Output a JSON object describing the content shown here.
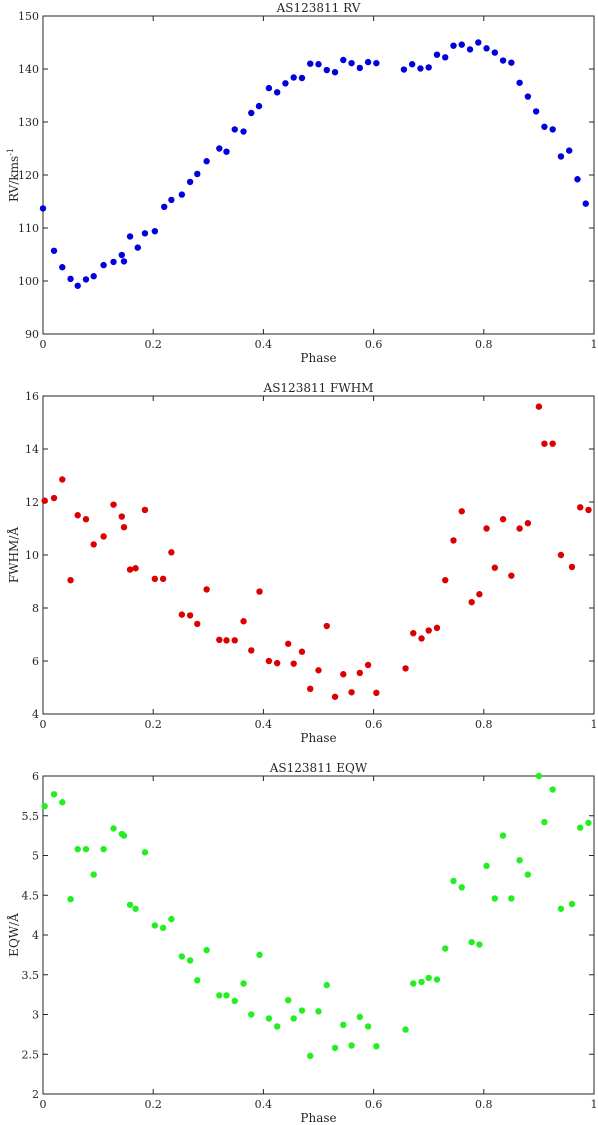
{
  "chart_data": [
    {
      "type": "scatter",
      "title": "AS123811 RV",
      "xlabel": "Phase",
      "ylabel": "RV/kms",
      "ylabel_superscript": "-1",
      "xlim": [
        0,
        1
      ],
      "ylim": [
        90,
        150
      ],
      "xticks": [
        "0",
        "0.2",
        "0.4",
        "0.6",
        "0.8",
        "1"
      ],
      "yticks": [
        "90",
        "100",
        "110",
        "120",
        "130",
        "140",
        "150"
      ],
      "grid": false,
      "color": "#0000dd",
      "x": [
        0.0,
        0.02,
        0.035,
        0.05,
        0.063,
        0.078,
        0.092,
        0.11,
        0.128,
        0.143,
        0.147,
        0.158,
        0.172,
        0.185,
        0.203,
        0.22,
        0.233,
        0.252,
        0.267,
        0.28,
        0.297,
        0.32,
        0.333,
        0.348,
        0.364,
        0.378,
        0.392,
        0.41,
        0.425,
        0.44,
        0.455,
        0.47,
        0.485,
        0.5,
        0.515,
        0.53,
        0.545,
        0.56,
        0.575,
        0.59,
        0.605,
        0.655,
        0.67,
        0.685,
        0.7,
        0.715,
        0.73,
        0.745,
        0.76,
        0.775,
        0.79,
        0.805,
        0.82,
        0.835,
        0.85,
        0.865,
        0.88,
        0.895,
        0.91,
        0.925,
        0.94,
        0.955,
        0.97,
        0.985
      ],
      "y": [
        113.7,
        105.7,
        102.6,
        100.4,
        99.1,
        100.3,
        100.9,
        103.0,
        103.6,
        104.9,
        103.7,
        108.4,
        106.3,
        109.0,
        109.4,
        114.0,
        115.3,
        116.3,
        118.7,
        120.2,
        122.6,
        125.0,
        124.4,
        128.6,
        128.2,
        131.7,
        133.0,
        136.4,
        135.6,
        137.3,
        138.4,
        138.3,
        141.0,
        140.9,
        139.8,
        139.4,
        141.7,
        141.1,
        140.2,
        141.3,
        141.1,
        139.9,
        140.9,
        140.1,
        140.3,
        142.7,
        142.2,
        144.4,
        144.6,
        143.7,
        145.0,
        143.9,
        143.1,
        141.6,
        141.2,
        137.4,
        134.8,
        132.0,
        129.1,
        128.6,
        123.5,
        124.6,
        119.2,
        114.6
      ]
    },
    {
      "type": "scatter",
      "title": "AS123811 FWHM",
      "xlabel": "Phase",
      "ylabel": "FWHM/Å",
      "xlim": [
        0,
        1
      ],
      "ylim": [
        4,
        16
      ],
      "xticks": [
        "0",
        "0.2",
        "0.4",
        "0.6",
        "0.8",
        "1"
      ],
      "yticks": [
        "4",
        "6",
        "8",
        "10",
        "12",
        "14",
        "16"
      ],
      "grid": false,
      "color": "#dd0000",
      "x": [
        0.003,
        0.02,
        0.035,
        0.05,
        0.063,
        0.078,
        0.092,
        0.11,
        0.128,
        0.143,
        0.147,
        0.158,
        0.168,
        0.185,
        0.203,
        0.218,
        0.233,
        0.252,
        0.267,
        0.28,
        0.297,
        0.32,
        0.333,
        0.348,
        0.364,
        0.378,
        0.393,
        0.41,
        0.425,
        0.445,
        0.455,
        0.47,
        0.485,
        0.5,
        0.515,
        0.53,
        0.545,
        0.56,
        0.575,
        0.59,
        0.605,
        0.658,
        0.672,
        0.687,
        0.7,
        0.715,
        0.73,
        0.745,
        0.76,
        0.778,
        0.792,
        0.805,
        0.82,
        0.835,
        0.85,
        0.865,
        0.88,
        0.9,
        0.91,
        0.925,
        0.94,
        0.96,
        0.975,
        0.99
      ],
      "y": [
        12.05,
        12.15,
        12.85,
        9.05,
        11.5,
        11.35,
        10.4,
        10.7,
        11.9,
        11.45,
        11.05,
        9.45,
        9.5,
        11.7,
        9.1,
        9.1,
        10.1,
        7.75,
        7.72,
        7.4,
        8.7,
        6.8,
        6.78,
        6.78,
        7.5,
        6.4,
        8.62,
        6.0,
        5.92,
        6.65,
        5.9,
        6.35,
        4.95,
        5.65,
        7.32,
        4.65,
        5.5,
        4.82,
        5.55,
        5.85,
        4.8,
        5.72,
        7.05,
        6.85,
        7.15,
        7.25,
        9.05,
        10.55,
        11.65,
        8.22,
        8.52,
        11.0,
        9.52,
        11.35,
        9.22,
        11.0,
        11.2,
        15.6,
        14.2,
        14.2,
        10.0,
        9.55,
        11.8,
        11.7
      ]
    },
    {
      "type": "scatter",
      "title": "AS123811 EQW",
      "xlabel": "Phase",
      "ylabel": "EQW/Å",
      "xlim": [
        0,
        1
      ],
      "ylim": [
        2,
        6
      ],
      "xticks": [
        "0",
        "0.2",
        "0.4",
        "0.6",
        "0.8",
        "1"
      ],
      "yticks": [
        "2",
        "2.5",
        "3",
        "3.5",
        "4",
        "4.5",
        "5",
        "5.5",
        "6"
      ],
      "grid": false,
      "color": "#22ee22",
      "x": [
        0.003,
        0.02,
        0.035,
        0.05,
        0.063,
        0.078,
        0.092,
        0.11,
        0.128,
        0.143,
        0.147,
        0.158,
        0.168,
        0.185,
        0.203,
        0.218,
        0.233,
        0.252,
        0.267,
        0.28,
        0.297,
        0.32,
        0.333,
        0.348,
        0.364,
        0.378,
        0.393,
        0.41,
        0.425,
        0.445,
        0.455,
        0.47,
        0.485,
        0.5,
        0.515,
        0.53,
        0.545,
        0.56,
        0.575,
        0.59,
        0.605,
        0.658,
        0.672,
        0.687,
        0.7,
        0.715,
        0.73,
        0.745,
        0.76,
        0.778,
        0.792,
        0.805,
        0.82,
        0.835,
        0.85,
        0.865,
        0.88,
        0.9,
        0.91,
        0.925,
        0.94,
        0.96,
        0.975,
        0.99
      ],
      "y": [
        5.62,
        5.77,
        5.67,
        4.45,
        5.08,
        5.08,
        4.76,
        5.08,
        5.34,
        5.27,
        5.25,
        4.38,
        4.33,
        5.04,
        4.12,
        4.09,
        4.2,
        3.73,
        3.68,
        3.43,
        3.81,
        3.24,
        3.24,
        3.17,
        3.39,
        3.0,
        3.75,
        2.95,
        2.85,
        3.18,
        2.95,
        3.05,
        2.48,
        3.04,
        3.37,
        2.58,
        2.87,
        2.61,
        2.97,
        2.85,
        2.6,
        2.81,
        3.39,
        3.41,
        3.46,
        3.44,
        3.83,
        4.68,
        4.6,
        3.91,
        3.88,
        4.87,
        4.46,
        5.25,
        4.46,
        4.94,
        4.76,
        6.0,
        5.42,
        5.83,
        4.33,
        4.39,
        5.35,
        5.41
      ]
    }
  ]
}
